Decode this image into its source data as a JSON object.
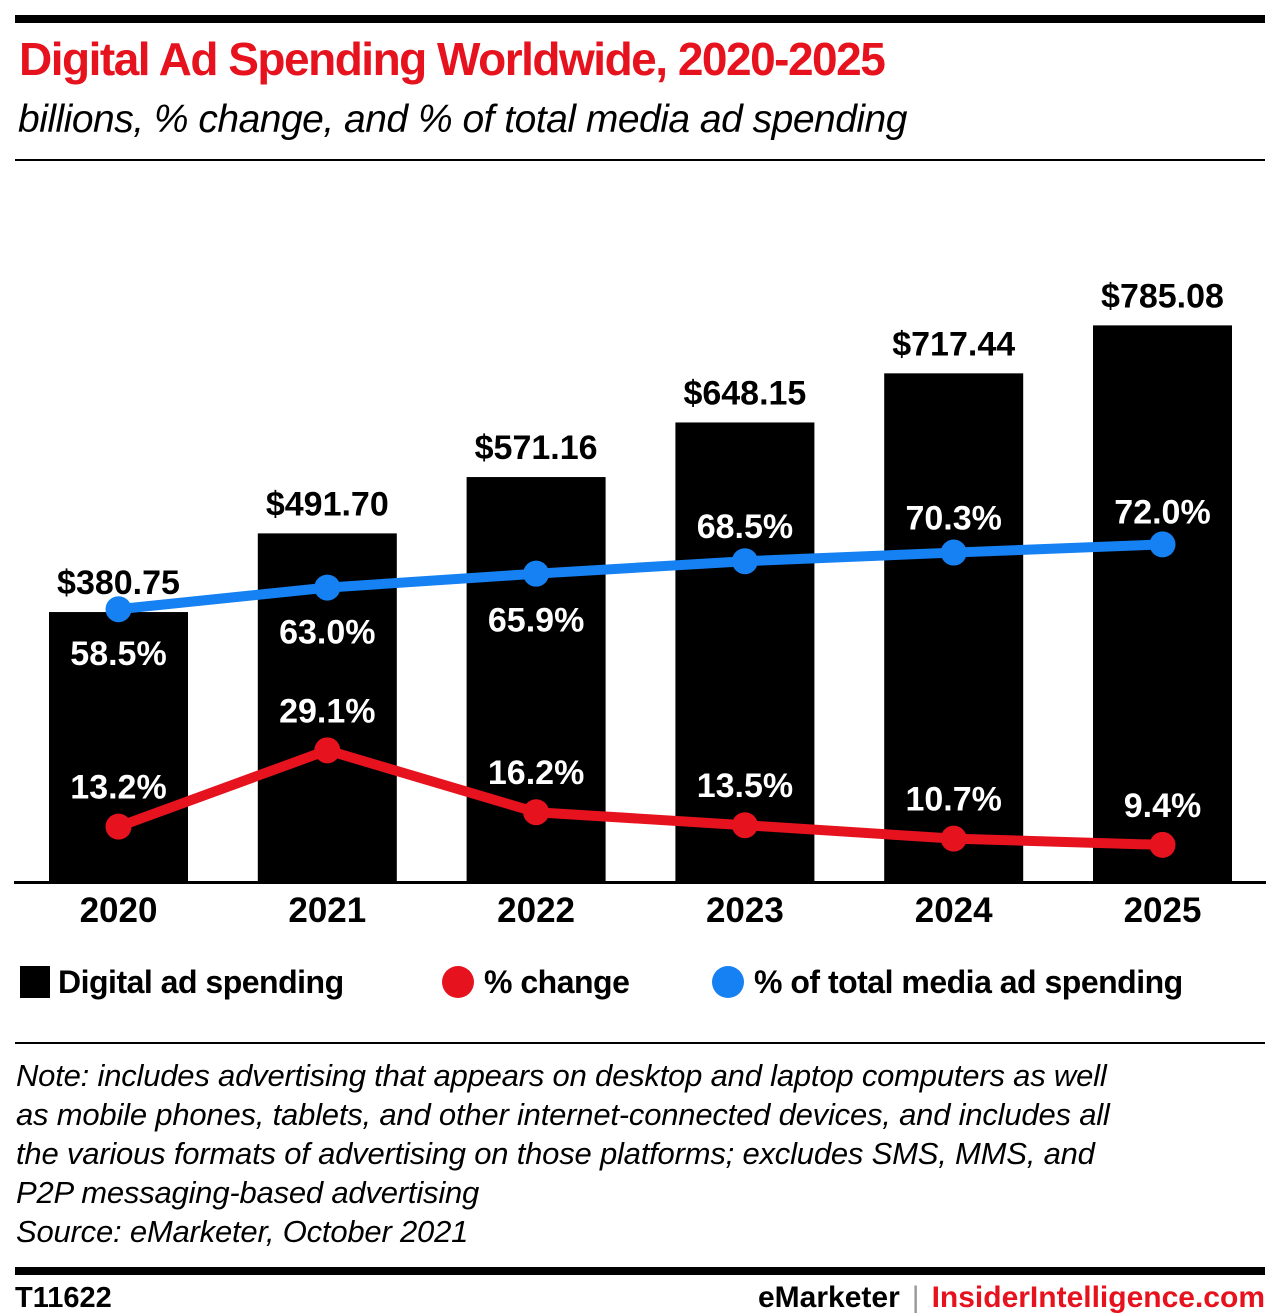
{
  "header": {
    "title": "Digital Ad Spending Worldwide, 2020-2025",
    "subtitle": "billions, % change, and % of total media ad spending"
  },
  "colors": {
    "accent_red": "#e6121d",
    "line_blue": "#1581f3",
    "bar_black": "#000000",
    "divider_gray": "#9a9a9a",
    "on_bar_label": "#ffffff"
  },
  "chart_data": {
    "type": "bar",
    "subtype": "bars with two overlaid line series",
    "title": "Digital Ad Spending Worldwide, 2020-2025",
    "xlabel": "",
    "ylabel": "",
    "grid": false,
    "legend_position": "bottom",
    "categories": [
      "2020",
      "2021",
      "2022",
      "2023",
      "2024",
      "2025"
    ],
    "series": [
      {
        "name": "Digital ad spending",
        "type": "bar",
        "unit": "billions of US dollars",
        "color": "#000000",
        "values": [
          380.75,
          491.7,
          571.16,
          648.15,
          717.44,
          785.08
        ],
        "labels": [
          "$380.75",
          "$491.70",
          "$571.16",
          "$648.15",
          "$717.44",
          "$785.08"
        ]
      },
      {
        "name": "% change",
        "type": "line",
        "unit": "percent",
        "color": "#e6121d",
        "values": [
          13.2,
          29.1,
          16.2,
          13.5,
          10.7,
          9.4
        ],
        "labels": [
          "13.2%",
          "29.1%",
          "16.2%",
          "13.5%",
          "10.7%",
          "9.4%"
        ]
      },
      {
        "name": "% of total media ad spending",
        "type": "line",
        "unit": "percent",
        "color": "#1581f3",
        "values": [
          58.5,
          63.0,
          65.9,
          68.5,
          70.3,
          72.0
        ],
        "labels": [
          "58.5%",
          "63.0%",
          "65.9%",
          "68.5%",
          "70.3%",
          "72.0%"
        ]
      }
    ]
  },
  "legend": {
    "items": [
      {
        "label": "Digital ad spending",
        "swatch": "square",
        "color": "#000000"
      },
      {
        "label": "% change",
        "swatch": "circle",
        "color": "#e6121d"
      },
      {
        "label": "% of total media ad spending",
        "swatch": "circle",
        "color": "#1581f3"
      }
    ]
  },
  "note": {
    "lines": [
      "Note: includes advertising that appears on desktop and laptop computers as well",
      "as mobile phones, tablets, and other internet-connected devices, and includes all",
      "the various formats of advertising on those platforms; excludes SMS, MMS, and",
      "P2P messaging-based advertising"
    ],
    "source": "Source: eMarketer, October 2021"
  },
  "footer": {
    "chart_id": "T11622",
    "brand": "eMarketer",
    "divider": "|",
    "site": "InsiderIntelligence.com"
  }
}
